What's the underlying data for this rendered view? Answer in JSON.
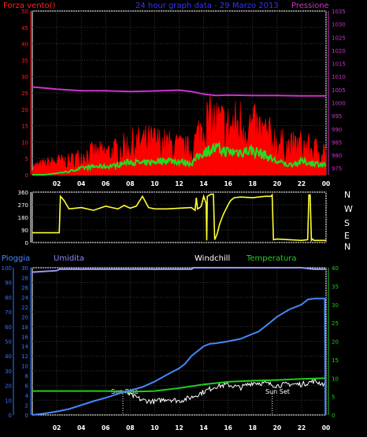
{
  "header": {
    "wind_title": "Forza vento()",
    "subtitle": "24 hour graph data - 29 Marzo 2013",
    "pressure_title": "Pressione",
    "rain_title": "Pioggia",
    "humidity_title": "Umidita",
    "windchill_title": "Windchill",
    "temperature_title": "Temperatura"
  },
  "compass": [
    "N",
    "W",
    "S",
    "E",
    "N"
  ],
  "markers": {
    "sunrise": "Sun Rise",
    "sunset": "Sun Set"
  },
  "colors": {
    "wind_title": "#ff2020",
    "subtitle": "#3333ff",
    "pressure": "#cc33cc",
    "wind_gust": "#ff0000",
    "wind_avg": "#22dd22",
    "direction": "#ffff33",
    "rain": "#4488ff",
    "humidity": "#9999ff",
    "windchill": "#ffffff",
    "temperature": "#22cc22",
    "rain_axis": "#3377ff",
    "temp_axis": "#22cc22"
  },
  "chart_data": [
    {
      "type": "area",
      "name": "wind-and-pressure",
      "x_ticks": [
        "02",
        "04",
        "06",
        "08",
        "10",
        "12",
        "14",
        "16",
        "18",
        "20",
        "22",
        "00"
      ],
      "y_left_ticks": [
        0,
        5,
        10,
        15,
        20,
        25,
        30,
        35,
        40,
        45,
        50
      ],
      "y_left_range": [
        0,
        50
      ],
      "y_right_ticks": [
        975,
        980,
        985,
        990,
        995,
        1000,
        1005,
        1010,
        1015,
        1020,
        1025,
        1030,
        1035
      ],
      "y_right_range": [
        972.5,
        1035
      ],
      "x_range": [
        0,
        24
      ],
      "series": [
        {
          "key": "pressure",
          "axis": "right",
          "x": [
            0,
            1,
            2,
            3,
            4,
            6,
            8,
            10,
            12,
            13,
            14,
            15,
            16,
            18,
            20,
            22,
            24
          ],
          "values": [
            1006.0,
            1005.6,
            1005.2,
            1004.9,
            1004.6,
            1004.6,
            1004.3,
            1004.5,
            1004.8,
            1004.3,
            1003.3,
            1002.8,
            1002.9,
            1002.8,
            1002.8,
            1002.6,
            1002.6
          ]
        },
        {
          "key": "gust",
          "axis": "left",
          "x": [
            0,
            1,
            2,
            3,
            4,
            5,
            6,
            7,
            8,
            9,
            10,
            11,
            12,
            13,
            14,
            15,
            16,
            17,
            18,
            19,
            20,
            21,
            22,
            23,
            24
          ],
          "values": [
            3,
            4,
            5,
            5,
            7,
            8,
            8,
            9,
            11,
            12,
            12,
            11,
            10,
            9,
            19,
            19,
            17,
            19,
            17,
            15,
            12,
            10,
            11,
            9,
            9
          ]
        },
        {
          "key": "average",
          "axis": "left",
          "x": [
            0,
            1,
            2,
            3,
            4,
            5,
            6,
            7,
            8,
            9,
            10,
            11,
            12,
            13,
            14,
            15,
            16,
            17,
            18,
            19,
            20,
            21,
            22,
            23,
            24
          ],
          "values": [
            0,
            0,
            0.5,
            1,
            2,
            2.5,
            2.5,
            3,
            4,
            3.5,
            4,
            4.5,
            4,
            3.5,
            7,
            8,
            7,
            7,
            7.5,
            6,
            4,
            3,
            4,
            3.5,
            3
          ]
        }
      ]
    },
    {
      "type": "line",
      "name": "wind-direction",
      "x_range": [
        0,
        24
      ],
      "y_ticks": [
        0,
        90,
        180,
        270,
        360
      ],
      "y_range": [
        0,
        360
      ],
      "series": [
        {
          "key": "direction",
          "x": [
            0,
            2.2,
            2.3,
            2.6,
            3,
            4,
            5,
            6,
            6.5,
            7,
            7.5,
            8,
            8.5,
            9,
            9.5,
            10,
            11,
            12,
            13,
            13.3,
            13.4,
            13.5,
            13.7,
            13.8,
            14,
            14.2,
            14.25,
            14.3,
            14.6,
            14.8,
            14.9,
            15.0,
            15.1,
            15.3,
            15.6,
            16,
            16.2,
            16.5,
            17,
            18,
            19,
            19.5,
            19.6,
            19.7,
            20,
            21,
            22,
            22.5,
            22.6,
            22.7,
            22.8,
            22.9,
            23,
            24
          ],
          "values": [
            70,
            70,
            330,
            300,
            240,
            250,
            230,
            260,
            250,
            240,
            265,
            245,
            260,
            330,
            250,
            240,
            240,
            245,
            250,
            230,
            320,
            240,
            250,
            260,
            330,
            280,
            15,
            330,
            345,
            345,
            20,
            40,
            60,
            130,
            200,
            270,
            300,
            320,
            325,
            320,
            330,
            330,
            340,
            20,
            25,
            20,
            15,
            20,
            340,
            340,
            15,
            25,
            15,
            15
          ]
        }
      ]
    },
    {
      "type": "line",
      "name": "rain-humidity-temperature",
      "x_ticks": [
        "02",
        "04",
        "06",
        "08",
        "10",
        "12",
        "14",
        "16",
        "18",
        "20",
        "22",
        "00"
      ],
      "x_range": [
        0,
        24
      ],
      "y_left_ticks": [
        0,
        10,
        20,
        30,
        40,
        50,
        60,
        70,
        80,
        90,
        100
      ],
      "y_left_range": [
        0,
        100
      ],
      "y_mid_ticks": [
        0,
        2,
        4,
        6,
        8,
        10,
        12,
        14,
        16,
        18,
        20,
        22,
        24,
        26,
        28,
        30
      ],
      "y_mid_range": [
        0,
        30
      ],
      "y_right_ticks": [
        0,
        5,
        10,
        15,
        20,
        25,
        30,
        35,
        40
      ],
      "y_right_range": [
        0,
        40
      ],
      "series": [
        {
          "key": "humidity",
          "axis": "left",
          "x": [
            0,
            2,
            2.2,
            8,
            10,
            12,
            13,
            13.2,
            16,
            18,
            20,
            22,
            23,
            24
          ],
          "values": [
            97,
            98,
            99,
            99,
            99,
            99,
            99,
            100,
            100,
            100,
            100,
            100,
            99,
            99
          ]
        },
        {
          "key": "rain",
          "axis": "mid",
          "x": [
            0,
            1,
            2,
            3,
            4,
            5,
            6,
            7,
            8,
            9,
            10,
            10.5,
            11,
            12,
            12.5,
            13,
            13.5,
            14,
            14.5,
            15,
            16,
            17,
            18,
            18.5,
            19,
            19.5,
            20,
            21,
            22,
            22.5,
            23,
            23.5,
            23.9
          ],
          "values": [
            0,
            0.3,
            0.7,
            1.2,
            2,
            2.8,
            3.5,
            4.3,
            5,
            5.7,
            6.8,
            7.5,
            8.2,
            9.5,
            10.5,
            12,
            13,
            14,
            14.5,
            14.6,
            15,
            15.5,
            16.5,
            17,
            18,
            19,
            20,
            21.5,
            22.5,
            23.5,
            23.7,
            23.7,
            23.7
          ]
        },
        {
          "key": "temperature",
          "axis": "right",
          "x": [
            0,
            2,
            4,
            6,
            8,
            10,
            12,
            14,
            16,
            18,
            20,
            22,
            24
          ],
          "values": [
            6.5,
            6.5,
            6.5,
            6.5,
            6.3,
            6.5,
            7.3,
            8.3,
            9.0,
            9.3,
            9.5,
            9.8,
            10.0
          ]
        },
        {
          "key": "windchill",
          "axis": "right",
          "x": [
            0,
            2,
            4,
            6,
            7.4,
            8,
            9,
            10,
            11,
            12,
            13,
            14,
            15,
            16,
            17,
            18,
            19,
            20,
            21,
            22,
            23,
            24
          ],
          "values": [
            6.5,
            6.5,
            6.5,
            6.5,
            6.4,
            5.5,
            4.0,
            3.6,
            4.4,
            3.8,
            4.8,
            6.3,
            7.8,
            8.2,
            7.4,
            8.8,
            8.6,
            8.0,
            8.4,
            8.3,
            9.2,
            8.2
          ]
        }
      ],
      "sunrise_hour": 7.4,
      "sunset_hour": 19.6
    }
  ]
}
